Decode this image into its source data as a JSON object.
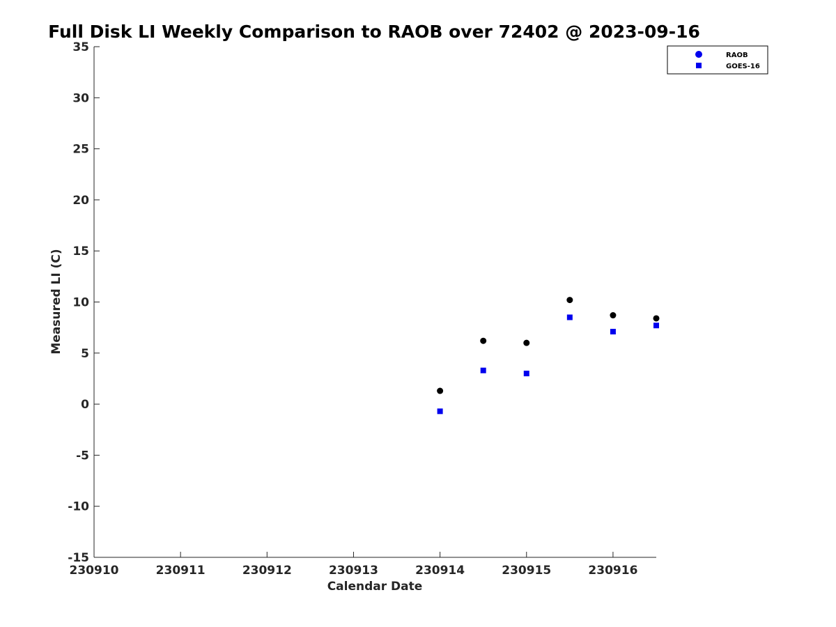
{
  "chart_data": {
    "type": "scatter",
    "title": "Full Disk LI Weekly Comparison to RAOB over 72402 @ 2023-09-16",
    "xlabel": "Calendar Date",
    "ylabel": "Measured LI (C)",
    "xlim": [
      230910,
      230916.5
    ],
    "ylim": [
      -15,
      35
    ],
    "x_ticks": [
      230910,
      230911,
      230912,
      230913,
      230914,
      230915,
      230916
    ],
    "x_tick_labels": [
      "230910",
      "230911",
      "230912",
      "230913",
      "230914",
      "230915",
      "230916"
    ],
    "y_ticks": [
      -15,
      -10,
      -5,
      0,
      5,
      10,
      15,
      20,
      25,
      30,
      35
    ],
    "y_tick_labels": [
      "-15",
      "-10",
      "-5",
      "0",
      "5",
      "10",
      "15",
      "20",
      "25",
      "30",
      "35"
    ],
    "grid": false,
    "legend_position": "top-right",
    "series": [
      {
        "name": "RAOB",
        "marker": "circle",
        "color": "#000000",
        "legend_color": "#0000ee",
        "points": [
          {
            "x": 230914.0,
            "y": 1.3
          },
          {
            "x": 230914.5,
            "y": 6.2
          },
          {
            "x": 230915.0,
            "y": 6.0
          },
          {
            "x": 230915.5,
            "y": 10.2
          },
          {
            "x": 230916.0,
            "y": 8.7
          },
          {
            "x": 230916.5,
            "y": 8.4
          }
        ]
      },
      {
        "name": "GOES-16",
        "marker": "square",
        "color": "#0000ee",
        "legend_color": "#0000ee",
        "points": [
          {
            "x": 230914.0,
            "y": -0.7
          },
          {
            "x": 230914.5,
            "y": 3.3
          },
          {
            "x": 230915.0,
            "y": 3.0
          },
          {
            "x": 230915.5,
            "y": 8.5
          },
          {
            "x": 230916.0,
            "y": 7.1
          },
          {
            "x": 230916.5,
            "y": 7.7
          }
        ]
      }
    ]
  }
}
